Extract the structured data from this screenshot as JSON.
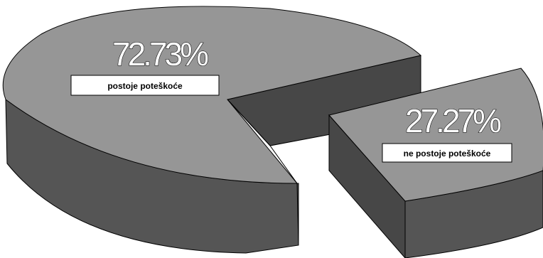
{
  "chart_data": {
    "type": "pie",
    "style": "3d-exploded",
    "categories": [
      "postoje poteškoće",
      "ne postoje poteškoće"
    ],
    "values": [
      72.73,
      27.27
    ],
    "value_labels": [
      "72.73%",
      "27.27%"
    ],
    "legend": "none",
    "colors": {
      "top": "#969696",
      "side": "#555555",
      "cut": "#474747",
      "outline": "#000000",
      "label_box": "#ffffff",
      "value_text": "#ffffff"
    }
  }
}
